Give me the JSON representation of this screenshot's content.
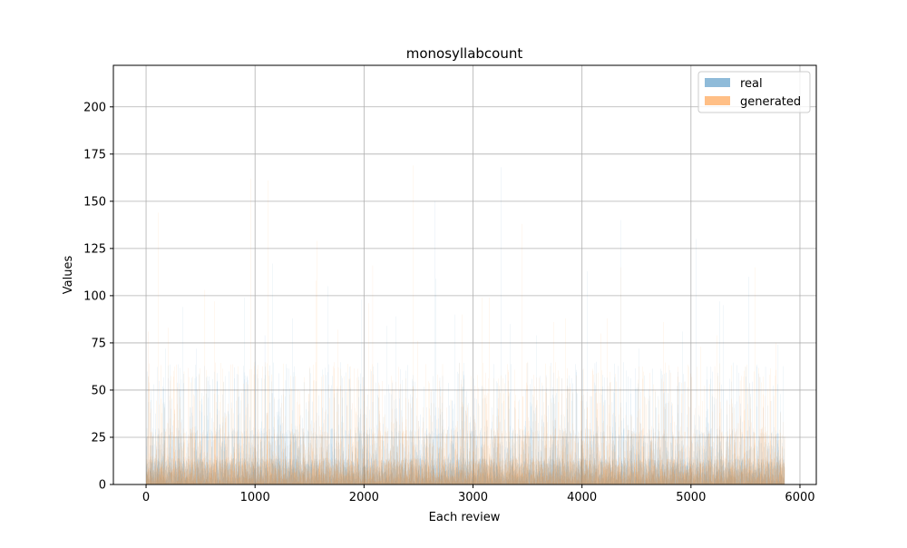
{
  "chart_data": {
    "type": "bar",
    "title": "monosyllabcount",
    "xlabel": "Each review",
    "ylabel": "Values",
    "xlim": [
      -300,
      6150
    ],
    "ylim": [
      0,
      222
    ],
    "x_ticks": [
      0,
      1000,
      2000,
      3000,
      4000,
      5000,
      6000
    ],
    "y_ticks": [
      0,
      25,
      50,
      75,
      100,
      125,
      150,
      175,
      200
    ],
    "x_tick_labels": [
      "0",
      "1000",
      "2000",
      "3000",
      "4000",
      "5000",
      "6000"
    ],
    "y_tick_labels": [
      "0",
      "25",
      "50",
      "75",
      "100",
      "125",
      "150",
      "175",
      "200"
    ],
    "grid": true,
    "legend_position": "top-right",
    "n_points": 5860,
    "series": [
      {
        "name": "real",
        "color": "#1f77b4",
        "alpha": 0.5,
        "peaks": [
          {
            "x": 20,
            "y": 57
          },
          {
            "x": 180,
            "y": 72
          },
          {
            "x": 200,
            "y": 63
          },
          {
            "x": 340,
            "y": 94
          },
          {
            "x": 460,
            "y": 72
          },
          {
            "x": 900,
            "y": 99
          },
          {
            "x": 1000,
            "y": 65
          },
          {
            "x": 1090,
            "y": 79
          },
          {
            "x": 1160,
            "y": 117
          },
          {
            "x": 1340,
            "y": 88
          },
          {
            "x": 1670,
            "y": 105
          },
          {
            "x": 1980,
            "y": 98
          },
          {
            "x": 2070,
            "y": 60
          },
          {
            "x": 2210,
            "y": 84
          },
          {
            "x": 2290,
            "y": 89
          },
          {
            "x": 2650,
            "y": 150
          },
          {
            "x": 2660,
            "y": 109
          },
          {
            "x": 2830,
            "y": 90
          },
          {
            "x": 3260,
            "y": 168
          },
          {
            "x": 3340,
            "y": 85
          },
          {
            "x": 3580,
            "y": 79
          },
          {
            "x": 4050,
            "y": 113
          },
          {
            "x": 4360,
            "y": 140
          },
          {
            "x": 4520,
            "y": 72
          },
          {
            "x": 4920,
            "y": 81
          },
          {
            "x": 5050,
            "y": 130
          },
          {
            "x": 5260,
            "y": 97
          },
          {
            "x": 5300,
            "y": 95
          },
          {
            "x": 5530,
            "y": 110
          },
          {
            "x": 5800,
            "y": 74
          }
        ]
      },
      {
        "name": "generated",
        "color": "#ff7f0e",
        "alpha": 0.5,
        "peaks": [
          {
            "x": 20,
            "y": 81
          },
          {
            "x": 110,
            "y": 144
          },
          {
            "x": 200,
            "y": 83
          },
          {
            "x": 540,
            "y": 103
          },
          {
            "x": 630,
            "y": 97
          },
          {
            "x": 960,
            "y": 162
          },
          {
            "x": 1120,
            "y": 161
          },
          {
            "x": 1570,
            "y": 129
          },
          {
            "x": 1560,
            "y": 108
          },
          {
            "x": 1760,
            "y": 82
          },
          {
            "x": 2040,
            "y": 96
          },
          {
            "x": 2080,
            "y": 116
          },
          {
            "x": 2450,
            "y": 169
          },
          {
            "x": 2490,
            "y": 76
          },
          {
            "x": 2900,
            "y": 90
          },
          {
            "x": 3080,
            "y": 99
          },
          {
            "x": 3150,
            "y": 99
          },
          {
            "x": 3450,
            "y": 138
          },
          {
            "x": 3740,
            "y": 86
          },
          {
            "x": 3850,
            "y": 88
          },
          {
            "x": 4170,
            "y": 80
          },
          {
            "x": 4230,
            "y": 88
          },
          {
            "x": 4360,
            "y": 115
          },
          {
            "x": 4750,
            "y": 86
          },
          {
            "x": 5090,
            "y": 73
          },
          {
            "x": 5240,
            "y": 79
          },
          {
            "x": 5590,
            "y": 115
          },
          {
            "x": 5780,
            "y": 75
          }
        ]
      }
    ]
  }
}
